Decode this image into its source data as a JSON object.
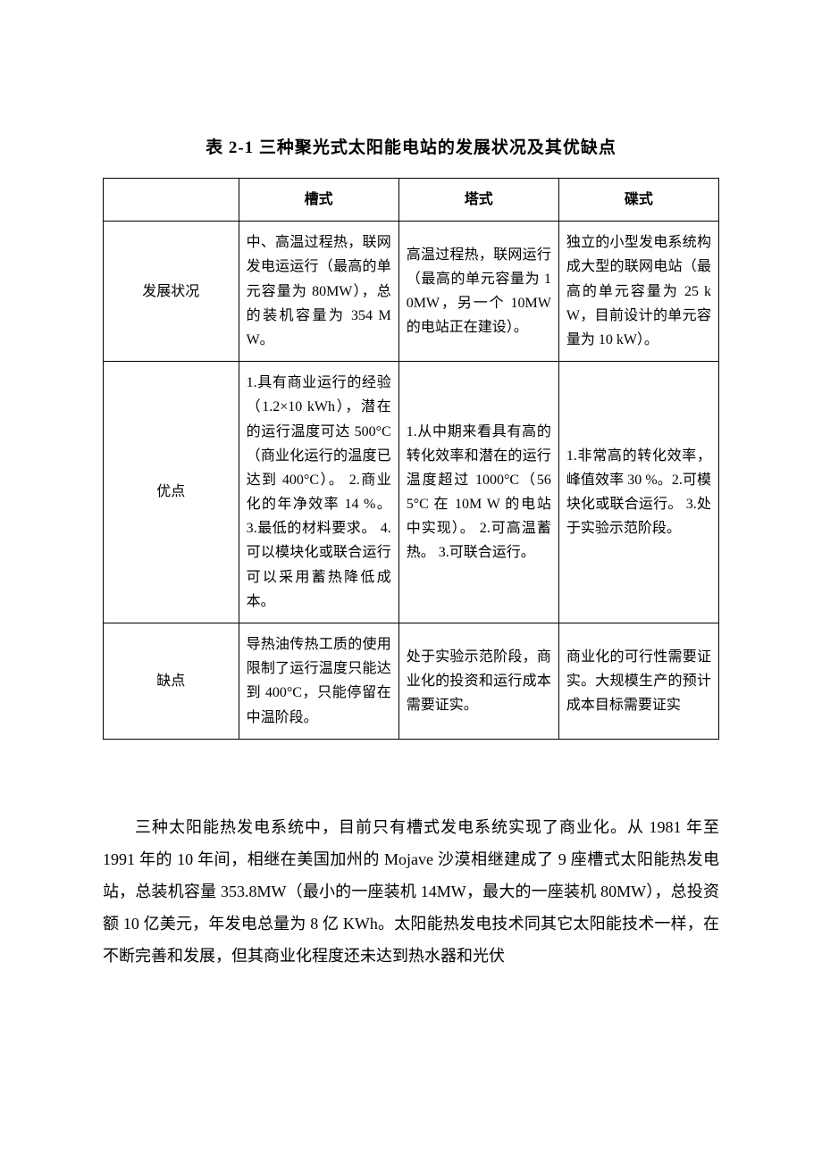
{
  "title": "表 2-1 三种聚光式太阳能电站的发展状况及其优缺点",
  "table": {
    "header": {
      "blank": "",
      "col1": "槽式",
      "col2": "塔式",
      "col3": "碟式"
    },
    "rows": [
      {
        "label": "发展状况",
        "c1": "中、高温过程热，联网发电运运行（最高的单元容量为 80MW），总的装机容量为 354 MW。",
        "c2": "高温过程热，联网运行（最高的单元容量为 10MW，另一个 10MW 的电站正在建设）。",
        "c3": "独立的小型发电系统构成大型的联网电站（最高的单元容量为 25 kW，目前设计的单元容量为 10 kW）。"
      },
      {
        "label": "优点",
        "c1": "1.具有商业运行的经验（1.2×10 kWh），潜在的运行温度可达 500°C（商业化运行的温度已达到 400°C）。\n2.商业化的年净效率 14 %。\n3.最低的材料要求。\n4.可以模块化或联合运行\n可以采用蓄热降低成本。",
        "c2": "1.从中期来看具有高的转化效率和潜在的运行温度超过 1000°C（56 5°C 在 10M W 的电站中实现）。\n2.可高温蓄热。\n3.可联合运行。",
        "c3": "1.非常高的转化效率，峰值效率 30 %。2.可模块化或联合运行。\n3.处于实验示范阶段。"
      },
      {
        "label": "缺点",
        "c1": "导热油传热工质的使用限制了运行温度只能达到 400°C，只能停留在中温阶段。",
        "c2": "处于实验示范阶段，商业化的投资和运行成本需要证实。",
        "c3": "商业化的可行性需要证实。大规模生产的预计成本目标需要证实"
      }
    ]
  },
  "paragraph": "三种太阳能热发电系统中，目前只有槽式发电系统实现了商业化。从 1981 年至 1991 年的 10 年间，相继在美国加州的 Mojave 沙漠相继建成了 9 座槽式太阳能热发电站，总装机容量 353.8MW（最小的一座装机 14MW，最大的一座装机 80MW），总投资额 10 亿美元，年发电总量为 8 亿 KWh。太阳能热发电技术同其它太阳能技术一样，在不断完善和发展，但其商业化程度还未达到热水器和光伏"
}
